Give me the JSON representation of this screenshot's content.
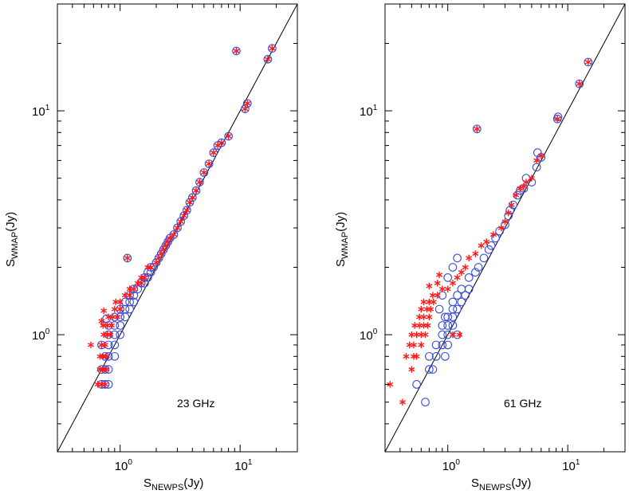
{
  "chart_data": [
    {
      "type": "scatter",
      "xscale": "log",
      "yscale": "log",
      "xlim": [
        0.3,
        30
      ],
      "ylim": [
        0.3,
        30
      ],
      "xlabel": {
        "base": "S",
        "sub": "NEWPS",
        "unit": "(Jy)"
      },
      "ylabel": {
        "base": "S",
        "sub": "WMAP",
        "unit": "(Jy)"
      },
      "x_ticks": [
        {
          "value": 1,
          "base": "10",
          "exp": "0"
        },
        {
          "value": 10,
          "base": "10",
          "exp": "1"
        }
      ],
      "y_ticks": [
        {
          "value": 1,
          "base": "10",
          "exp": "0"
        },
        {
          "value": 10,
          "base": "10",
          "exp": "1"
        }
      ],
      "annotation": "23 GHz",
      "reference_line": "y = x",
      "series": [
        {
          "name": "circles",
          "marker": "circle",
          "color": "#3a4bd8",
          "points": [
            [
              0.7,
              0.6
            ],
            [
              0.75,
              0.6
            ],
            [
              0.8,
              0.6
            ],
            [
              0.7,
              0.7
            ],
            [
              0.75,
              0.7
            ],
            [
              0.8,
              0.7
            ],
            [
              0.75,
              0.8
            ],
            [
              0.8,
              0.8
            ],
            [
              0.9,
              0.8
            ],
            [
              0.7,
              0.9
            ],
            [
              0.8,
              0.9
            ],
            [
              0.9,
              0.9
            ],
            [
              0.8,
              1.0
            ],
            [
              0.9,
              1.0
            ],
            [
              1.0,
              1.0
            ],
            [
              0.8,
              1.1
            ],
            [
              0.9,
              1.1
            ],
            [
              1.0,
              1.1
            ],
            [
              0.9,
              1.2
            ],
            [
              1.0,
              1.2
            ],
            [
              1.1,
              1.2
            ],
            [
              0.77,
              1.18
            ],
            [
              1.0,
              1.3
            ],
            [
              1.1,
              1.3
            ],
            [
              1.2,
              1.3
            ],
            [
              1.1,
              1.4
            ],
            [
              1.2,
              1.4
            ],
            [
              1.3,
              1.4
            ],
            [
              1.2,
              1.5
            ],
            [
              1.3,
              1.5
            ],
            [
              1.3,
              1.6
            ],
            [
              1.4,
              1.6
            ],
            [
              1.5,
              1.7
            ],
            [
              1.6,
              1.7
            ],
            [
              1.6,
              1.8
            ],
            [
              1.7,
              1.8
            ],
            [
              1.7,
              1.9
            ],
            [
              1.8,
              1.9
            ],
            [
              1.8,
              2.0
            ],
            [
              1.9,
              2.0
            ],
            [
              2.0,
              2.1
            ],
            [
              2.1,
              2.2
            ],
            [
              2.2,
              2.3
            ],
            [
              2.3,
              2.4
            ],
            [
              2.4,
              2.5
            ],
            [
              2.5,
              2.6
            ],
            [
              2.6,
              2.7
            ],
            [
              2.8,
              2.8
            ],
            [
              3.0,
              3.0
            ],
            [
              3.2,
              3.2
            ],
            [
              3.4,
              3.4
            ],
            [
              3.6,
              3.6
            ],
            [
              3.8,
              3.9
            ],
            [
              4.0,
              4.1
            ],
            [
              4.3,
              4.4
            ],
            [
              4.6,
              4.8
            ],
            [
              5.0,
              5.3
            ],
            [
              5.5,
              5.8
            ],
            [
              6.0,
              6.5
            ],
            [
              6.5,
              7.0
            ],
            [
              7.0,
              7.2
            ],
            [
              8.0,
              7.7
            ],
            [
              9.3,
              18.5
            ],
            [
              11.0,
              10.2
            ],
            [
              11.5,
              10.8
            ],
            [
              17.0,
              17.0
            ],
            [
              18.5,
              19.0
            ],
            [
              1.15,
              2.2
            ]
          ]
        },
        {
          "name": "asterisks",
          "marker": "asterisk",
          "color": "#ff1a1a",
          "points": [
            [
              0.65,
              0.6
            ],
            [
              0.7,
              0.6
            ],
            [
              0.75,
              0.6
            ],
            [
              0.68,
              0.7
            ],
            [
              0.72,
              0.7
            ],
            [
              0.77,
              0.7
            ],
            [
              0.68,
              0.8
            ],
            [
              0.72,
              0.8
            ],
            [
              0.77,
              0.8
            ],
            [
              0.57,
              0.9
            ],
            [
              0.7,
              0.9
            ],
            [
              0.75,
              0.9
            ],
            [
              0.73,
              1.0
            ],
            [
              0.78,
              1.0
            ],
            [
              0.83,
              1.0
            ],
            [
              0.72,
              1.1
            ],
            [
              0.78,
              1.1
            ],
            [
              0.85,
              1.1
            ],
            [
              0.8,
              1.2
            ],
            [
              0.87,
              1.2
            ],
            [
              0.95,
              1.2
            ],
            [
              0.73,
              1.28
            ],
            [
              0.7,
              1.15
            ],
            [
              0.9,
              1.3
            ],
            [
              1.0,
              1.3
            ],
            [
              0.92,
              1.4
            ],
            [
              1.0,
              1.4
            ],
            [
              1.1,
              1.5
            ],
            [
              1.2,
              1.5
            ],
            [
              1.2,
              1.6
            ],
            [
              1.3,
              1.6
            ],
            [
              1.4,
              1.7
            ],
            [
              1.5,
              1.7
            ],
            [
              1.5,
              1.8
            ],
            [
              1.6,
              1.8
            ],
            [
              1.7,
              2.0
            ],
            [
              1.8,
              2.0
            ],
            [
              2.0,
              2.1
            ],
            [
              2.1,
              2.2
            ],
            [
              2.2,
              2.3
            ],
            [
              2.3,
              2.4
            ],
            [
              2.4,
              2.5
            ],
            [
              2.5,
              2.6
            ],
            [
              2.6,
              2.7
            ],
            [
              2.8,
              2.8
            ],
            [
              3.0,
              3.0
            ],
            [
              3.2,
              3.2
            ],
            [
              3.4,
              3.4
            ],
            [
              3.6,
              3.6
            ],
            [
              3.8,
              3.9
            ],
            [
              4.0,
              4.1
            ],
            [
              4.3,
              4.4
            ],
            [
              4.6,
              4.8
            ],
            [
              5.0,
              5.3
            ],
            [
              5.5,
              5.8
            ],
            [
              6.0,
              6.5
            ],
            [
              6.5,
              7.0
            ],
            [
              7.0,
              7.2
            ],
            [
              8.0,
              7.7
            ],
            [
              9.3,
              18.5
            ],
            [
              11.0,
              10.2
            ],
            [
              11.5,
              10.8
            ],
            [
              17.0,
              17.0
            ],
            [
              18.5,
              19.0
            ],
            [
              1.15,
              2.2
            ]
          ]
        }
      ]
    },
    {
      "type": "scatter",
      "xscale": "log",
      "yscale": "log",
      "xlim": [
        0.3,
        30
      ],
      "ylim": [
        0.3,
        30
      ],
      "xlabel": {
        "base": "S",
        "sub": "NEWPS",
        "unit": "(Jy)"
      },
      "ylabel": {
        "base": "S",
        "sub": "WMAP",
        "unit": "(Jy)"
      },
      "x_ticks": [
        {
          "value": 1,
          "base": "10",
          "exp": "0"
        },
        {
          "value": 10,
          "base": "10",
          "exp": "1"
        }
      ],
      "y_ticks": [
        {
          "value": 1,
          "base": "10",
          "exp": "0"
        },
        {
          "value": 10,
          "base": "10",
          "exp": "1"
        }
      ],
      "annotation": "61 GHz",
      "reference_line": "y = x",
      "series": [
        {
          "name": "circles",
          "marker": "circle",
          "color": "#3a4bd8",
          "points": [
            [
              0.65,
              0.5
            ],
            [
              0.55,
              0.6
            ],
            [
              0.7,
              0.7
            ],
            [
              0.75,
              0.7
            ],
            [
              0.7,
              0.8
            ],
            [
              0.8,
              0.8
            ],
            [
              0.95,
              0.8
            ],
            [
              0.8,
              0.9
            ],
            [
              0.9,
              0.9
            ],
            [
              1.0,
              0.9
            ],
            [
              0.9,
              1.0
            ],
            [
              1.0,
              1.0
            ],
            [
              1.2,
              1.0
            ],
            [
              0.9,
              1.1
            ],
            [
              1.0,
              1.1
            ],
            [
              1.1,
              1.1
            ],
            [
              0.95,
              1.2
            ],
            [
              1.0,
              1.2
            ],
            [
              1.1,
              1.2
            ],
            [
              0.85,
              1.3
            ],
            [
              1.1,
              1.3
            ],
            [
              1.2,
              1.3
            ],
            [
              0.9,
              1.5
            ],
            [
              1.1,
              1.4
            ],
            [
              1.3,
              1.4
            ],
            [
              1.2,
              1.5
            ],
            [
              1.4,
              1.5
            ],
            [
              1.3,
              1.6
            ],
            [
              1.5,
              1.6
            ],
            [
              1.0,
              1.8
            ],
            [
              1.5,
              1.8
            ],
            [
              1.7,
              1.9
            ],
            [
              1.1,
              2.0
            ],
            [
              1.8,
              2.0
            ],
            [
              1.2,
              2.2
            ],
            [
              2.0,
              2.2
            ],
            [
              2.2,
              2.4
            ],
            [
              2.3,
              2.5
            ],
            [
              2.5,
              2.7
            ],
            [
              2.7,
              2.9
            ],
            [
              3.0,
              3.1
            ],
            [
              3.2,
              3.4
            ],
            [
              3.3,
              3.6
            ],
            [
              3.5,
              3.8
            ],
            [
              3.8,
              4.2
            ],
            [
              4.0,
              4.4
            ],
            [
              4.3,
              4.5
            ],
            [
              4.5,
              5.0
            ],
            [
              5.0,
              4.8
            ],
            [
              5.5,
              5.6
            ],
            [
              5.6,
              6.5
            ],
            [
              6.0,
              6.2
            ],
            [
              8.2,
              9.2
            ],
            [
              8.3,
              9.4
            ],
            [
              12.5,
              13.2
            ],
            [
              14.8,
              16.5
            ],
            [
              1.75,
              8.3
            ]
          ]
        },
        {
          "name": "asterisks",
          "marker": "asterisk",
          "color": "#ff1a1a",
          "points": [
            [
              0.33,
              0.6
            ],
            [
              0.42,
              0.5
            ],
            [
              0.45,
              0.8
            ],
            [
              0.5,
              0.7
            ],
            [
              0.52,
              0.8
            ],
            [
              0.55,
              0.8
            ],
            [
              0.48,
              0.9
            ],
            [
              0.52,
              0.9
            ],
            [
              0.6,
              0.9
            ],
            [
              0.5,
              1.0
            ],
            [
              0.55,
              1.0
            ],
            [
              0.6,
              1.0
            ],
            [
              0.65,
              1.0
            ],
            [
              0.53,
              1.1
            ],
            [
              0.58,
              1.1
            ],
            [
              0.63,
              1.1
            ],
            [
              0.68,
              1.1
            ],
            [
              0.58,
              1.2
            ],
            [
              0.63,
              1.2
            ],
            [
              0.7,
              1.2
            ],
            [
              0.6,
              1.3
            ],
            [
              0.67,
              1.3
            ],
            [
              0.72,
              1.3
            ],
            [
              0.63,
              1.4
            ],
            [
              0.7,
              1.4
            ],
            [
              0.76,
              1.4
            ],
            [
              0.75,
              1.5
            ],
            [
              0.82,
              1.5
            ],
            [
              0.7,
              1.65
            ],
            [
              0.82,
              1.7
            ],
            [
              0.9,
              1.6
            ],
            [
              1.0,
              1.6
            ],
            [
              1.1,
              1.7
            ],
            [
              0.85,
              1.85
            ],
            [
              1.2,
              1.8
            ],
            [
              1.3,
              1.9
            ],
            [
              1.4,
              2.0
            ],
            [
              1.5,
              2.2
            ],
            [
              1.7,
              2.3
            ],
            [
              1.9,
              2.5
            ],
            [
              2.1,
              2.6
            ],
            [
              2.4,
              2.8
            ],
            [
              2.8,
              3.0
            ],
            [
              3.0,
              3.2
            ],
            [
              3.2,
              3.5
            ],
            [
              3.4,
              3.8
            ],
            [
              3.7,
              4.2
            ],
            [
              4.0,
              4.5
            ],
            [
              4.3,
              4.6
            ],
            [
              4.5,
              4.8
            ],
            [
              5.0,
              5.0
            ],
            [
              5.5,
              6.0
            ],
            [
              6.0,
              6.3
            ],
            [
              8.2,
              9.2
            ],
            [
              12.5,
              13.2
            ],
            [
              14.8,
              16.5
            ],
            [
              1.75,
              8.3
            ],
            [
              1.1,
              1.0
            ],
            [
              1.25,
              1.0
            ]
          ]
        }
      ]
    }
  ]
}
